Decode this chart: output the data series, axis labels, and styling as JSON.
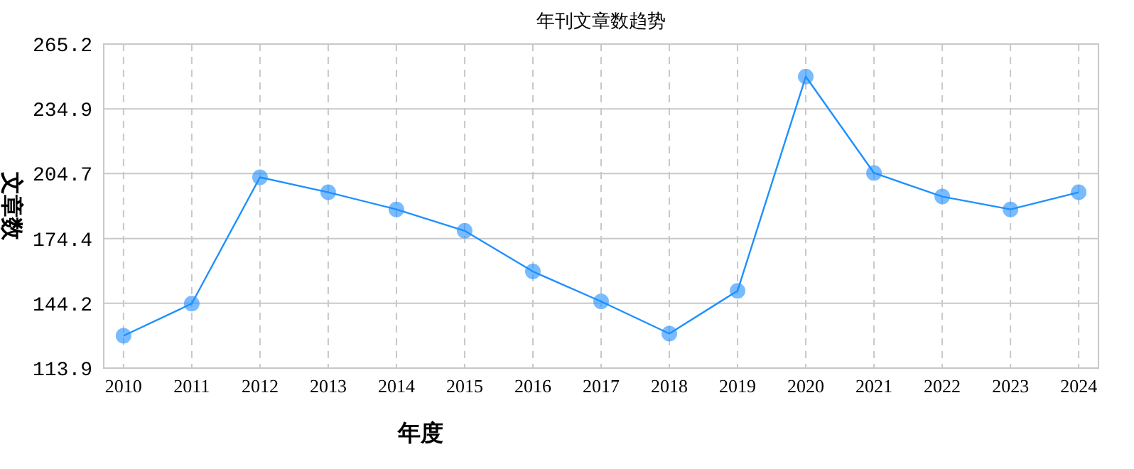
{
  "chart_data": {
    "type": "line",
    "title": "年刊文章数趋势",
    "xlabel": "年度",
    "ylabel": "文章数",
    "categories": [
      "2010",
      "2011",
      "2012",
      "2013",
      "2014",
      "2015",
      "2016",
      "2017",
      "2018",
      "2019",
      "2020",
      "2021",
      "2022",
      "2023",
      "2024"
    ],
    "series": [
      {
        "color": "#1e90ff",
        "values": [
          129,
          144,
          203,
          196,
          188,
          178,
          159,
          145,
          130,
          150,
          250,
          205,
          194,
          188,
          196
        ]
      }
    ],
    "ylim": [
      113.9,
      265.2
    ],
    "yticks": [
      113.9,
      144.2,
      174.4,
      204.7,
      234.9,
      265.2
    ],
    "grid": true,
    "marker": "circle",
    "line_style": "solid"
  }
}
